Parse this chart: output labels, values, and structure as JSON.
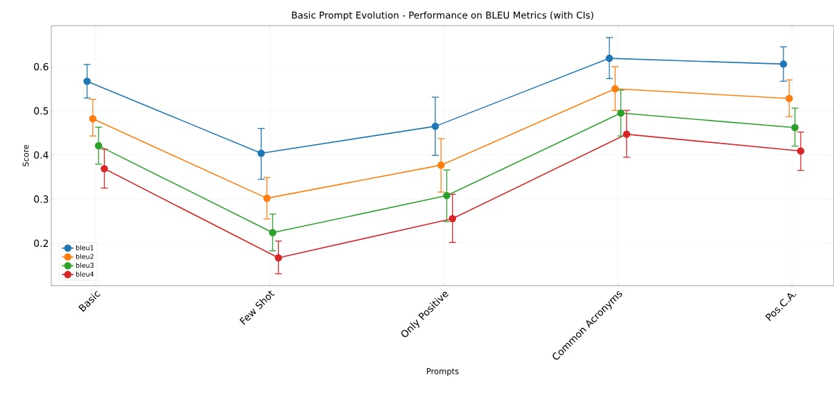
{
  "chart_data": {
    "type": "line",
    "title": "Basic Prompt Evolution - Performance on BLEU Metrics (with CIs)",
    "xlabel": "Prompts",
    "ylabel": "Score",
    "categories": [
      "Basic",
      "Few Shot",
      "Only Positive",
      "Common Acronyms",
      "Pos.C.A."
    ],
    "series": [
      {
        "name": "bleu1",
        "color": "#1f77b4",
        "values": [
          0.567,
          0.404,
          0.465,
          0.619,
          0.606
        ],
        "errors": [
          [
            0.529,
            0.605
          ],
          [
            0.345,
            0.46
          ],
          [
            0.399,
            0.531
          ],
          [
            0.573,
            0.666
          ],
          [
            0.567,
            0.645
          ]
        ]
      },
      {
        "name": "bleu2",
        "color": "#ff7f0e",
        "values": [
          0.482,
          0.302,
          0.377,
          0.55,
          0.528
        ],
        "errors": [
          [
            0.443,
            0.526
          ],
          [
            0.255,
            0.349
          ],
          [
            0.316,
            0.437
          ],
          [
            0.501,
            0.6
          ],
          [
            0.487,
            0.57
          ]
        ]
      },
      {
        "name": "bleu3",
        "color": "#2ca02c",
        "values": [
          0.421,
          0.224,
          0.308,
          0.495,
          0.462
        ],
        "errors": [
          [
            0.379,
            0.463
          ],
          [
            0.183,
            0.266
          ],
          [
            0.249,
            0.366
          ],
          [
            0.443,
            0.547
          ],
          [
            0.42,
            0.506
          ]
        ]
      },
      {
        "name": "bleu4",
        "color": "#d62728",
        "values": [
          0.369,
          0.167,
          0.256,
          0.447,
          0.409
        ],
        "errors": [
          [
            0.325,
            0.413
          ],
          [
            0.131,
            0.205
          ],
          [
            0.202,
            0.311
          ],
          [
            0.395,
            0.501
          ],
          [
            0.365,
            0.452
          ]
        ]
      }
    ],
    "ylim": [
      0.104,
      0.693
    ],
    "yticks": [
      0.2,
      0.3,
      0.4,
      0.5,
      0.6
    ],
    "grid": true,
    "legend": "bottom left",
    "marker": "circle",
    "line_style": "solid"
  }
}
